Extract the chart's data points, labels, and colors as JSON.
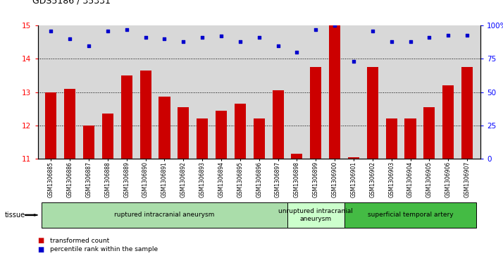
{
  "title": "GDS5186 / 35331",
  "samples": [
    "GSM1306885",
    "GSM1306886",
    "GSM1306887",
    "GSM1306888",
    "GSM1306889",
    "GSM1306890",
    "GSM1306891",
    "GSM1306892",
    "GSM1306893",
    "GSM1306894",
    "GSM1306895",
    "GSM1306896",
    "GSM1306897",
    "GSM1306898",
    "GSM1306899",
    "GSM1306900",
    "GSM1306901",
    "GSM1306902",
    "GSM1306903",
    "GSM1306904",
    "GSM1306905",
    "GSM1306906",
    "GSM1306907"
  ],
  "transformed_count": [
    13.0,
    13.1,
    12.0,
    12.35,
    13.5,
    13.65,
    12.87,
    12.55,
    12.2,
    12.45,
    12.65,
    12.2,
    13.05,
    11.15,
    13.75,
    15.0,
    11.05,
    13.75,
    12.2,
    12.2,
    12.55,
    13.2,
    13.75
  ],
  "percentile_rank": [
    96,
    90,
    85,
    96,
    97,
    91,
    90,
    88,
    91,
    92,
    88,
    91,
    85,
    80,
    97,
    100,
    73,
    96,
    88,
    88,
    91,
    93,
    93
  ],
  "ylim_left": [
    11,
    15
  ],
  "ylim_right": [
    0,
    100
  ],
  "yticks_left": [
    11,
    12,
    13,
    14,
    15
  ],
  "yticks_right": [
    0,
    25,
    50,
    75,
    100
  ],
  "ytick_right_labels": [
    "0",
    "25",
    "50",
    "75",
    "100%"
  ],
  "bar_color": "#cc0000",
  "dot_color": "#0000cc",
  "bg_color": "#d8d8d8",
  "tissue_groups": [
    {
      "label": "ruptured intracranial aneurysm",
      "start": 0,
      "end": 13,
      "color": "#aaddaa"
    },
    {
      "label": "unruptured intracranial\naneurysm",
      "start": 13,
      "end": 16,
      "color": "#ccffcc"
    },
    {
      "label": "superficial temporal artery",
      "start": 16,
      "end": 23,
      "color": "#44bb44"
    }
  ],
  "legend_items": [
    {
      "label": "transformed count",
      "color": "#cc0000"
    },
    {
      "label": "percentile rank within the sample",
      "color": "#0000cc"
    }
  ],
  "tissue_label": "tissue",
  "dotted_grid_values": [
    12,
    13,
    14
  ],
  "n_samples": 23
}
